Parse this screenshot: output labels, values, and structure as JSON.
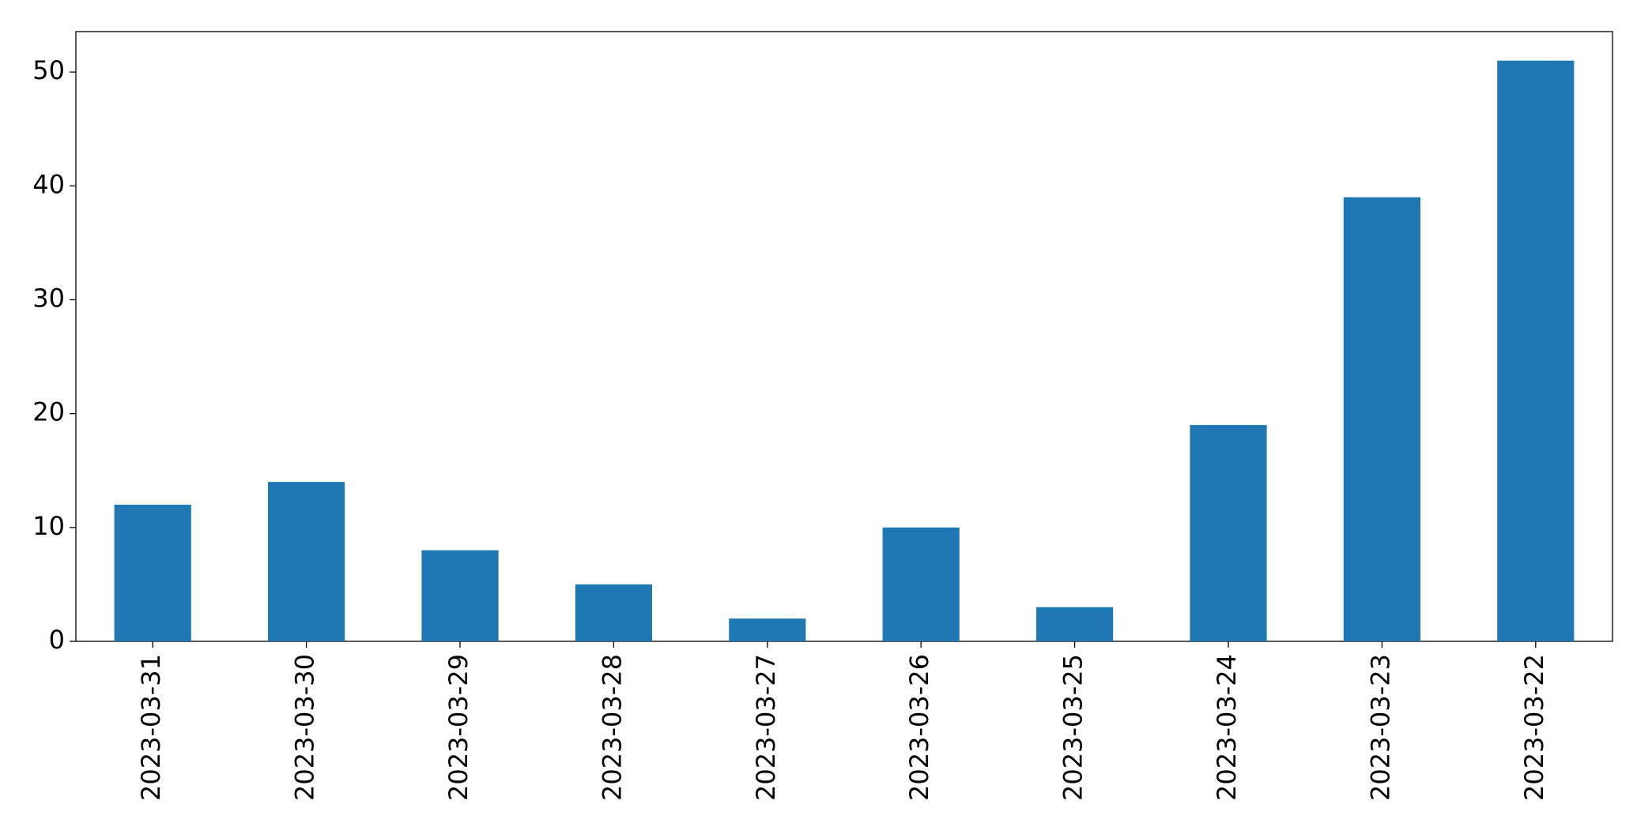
{
  "chart_data": {
    "type": "bar",
    "categories": [
      "2023-03-31",
      "2023-03-30",
      "2023-03-29",
      "2023-03-28",
      "2023-03-27",
      "2023-03-26",
      "2023-03-25",
      "2023-03-24",
      "2023-03-23",
      "2023-03-22"
    ],
    "values": [
      12,
      14,
      8,
      5,
      2,
      10,
      3,
      19,
      39,
      51
    ],
    "color": "#1f77b4",
    "ylim": [
      0,
      53.55
    ],
    "yticks": [
      0,
      10,
      20,
      30,
      40,
      50
    ],
    "grid": false
  }
}
